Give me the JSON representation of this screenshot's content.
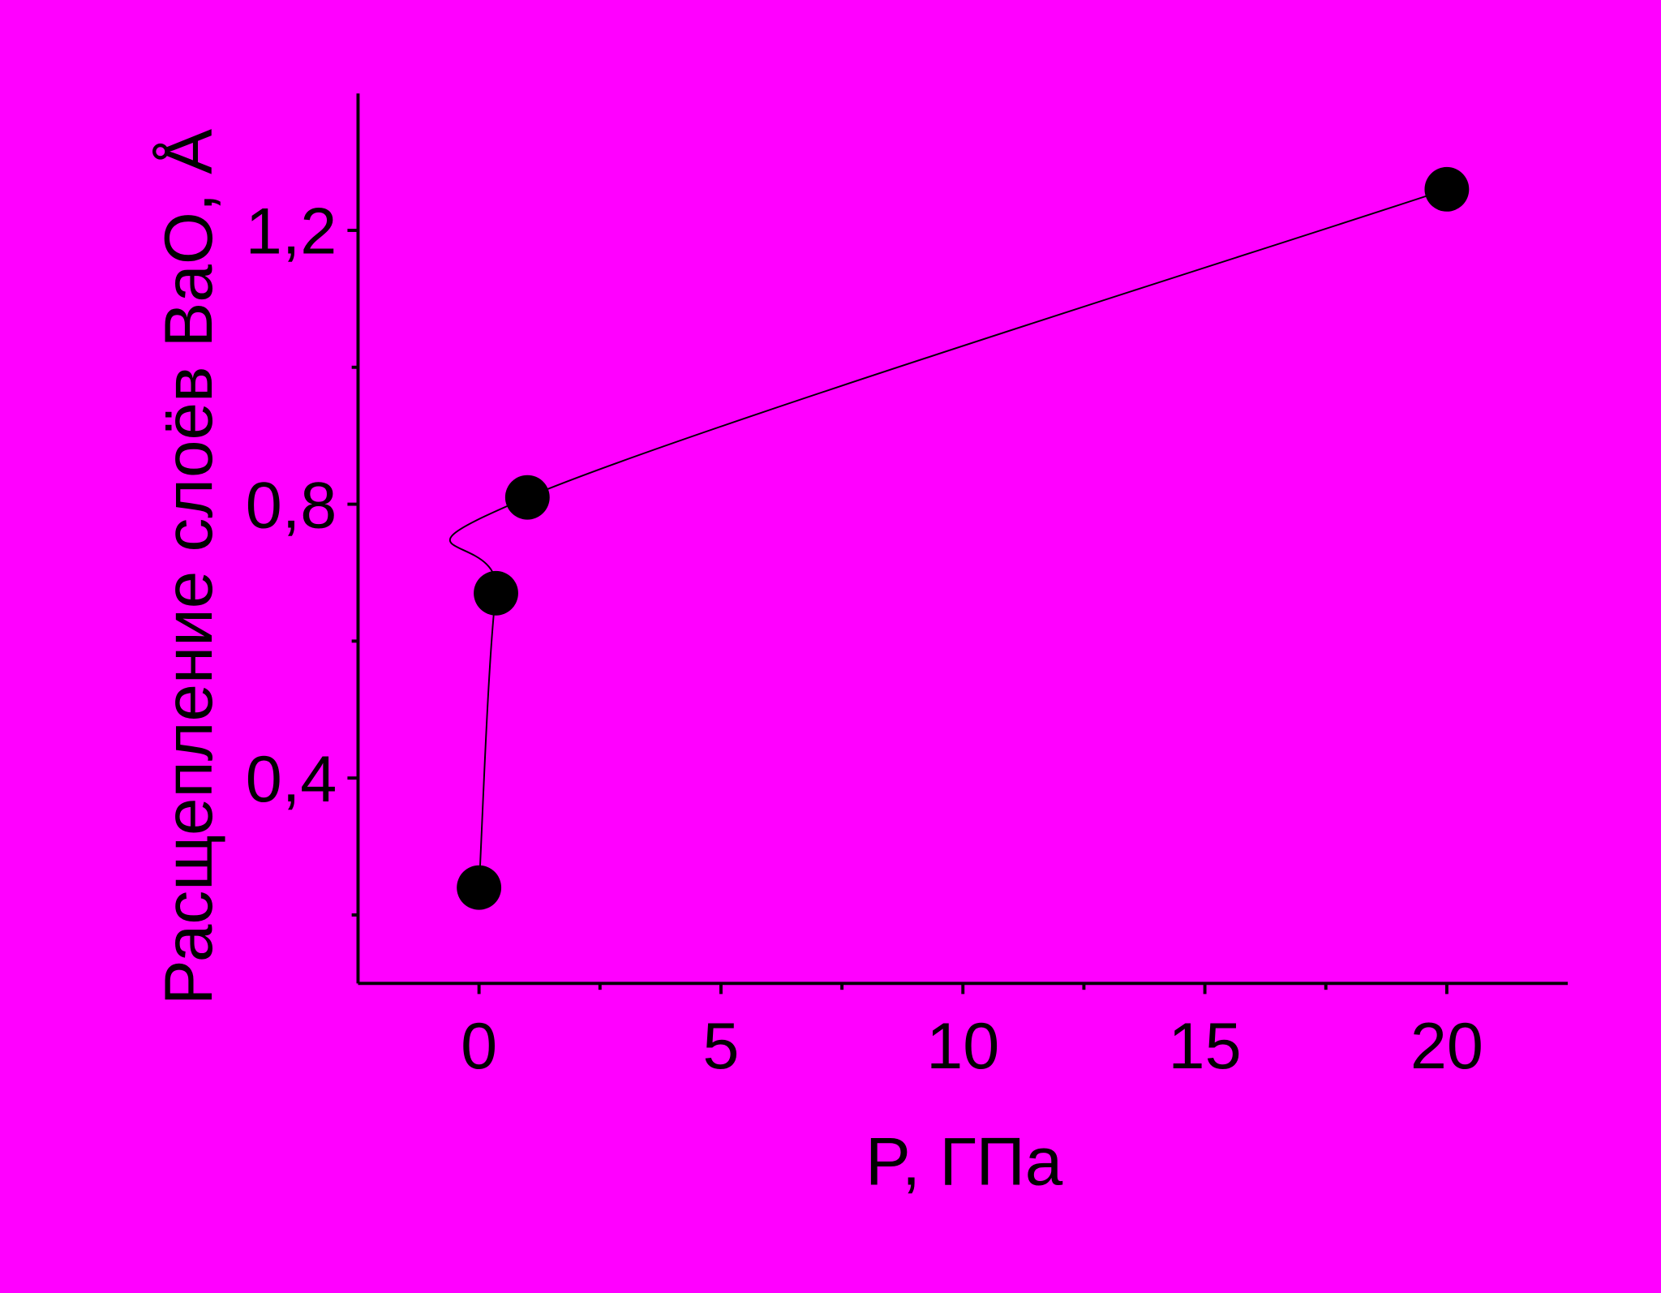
{
  "chart_data": {
    "type": "scatter",
    "x_label": "P, ГПа",
    "y_label": "Расщепление слоёв BaO, Å",
    "series": [
      {
        "x": [
          0,
          0.35,
          1,
          20
        ],
        "values": [
          0.24,
          0.67,
          0.81,
          1.26
        ],
        "color": "#000000"
      }
    ],
    "xlim": [
      -2.5,
      22.5
    ],
    "xticks": [
      0,
      5,
      10,
      15,
      20
    ],
    "minor_xticks": [
      2.5,
      7.5,
      12.5,
      17.5
    ],
    "ylim": [
      0.1,
      1.4
    ],
    "yticks": [
      {
        "value": 0.4,
        "label": "0,4"
      },
      {
        "value": 0.8,
        "label": "0,8"
      },
      {
        "value": 1.2,
        "label": "1,2"
      }
    ],
    "minor_yticks": [
      0.2,
      0.6,
      1.0
    ],
    "background": "#ff00ff",
    "line": true
  }
}
